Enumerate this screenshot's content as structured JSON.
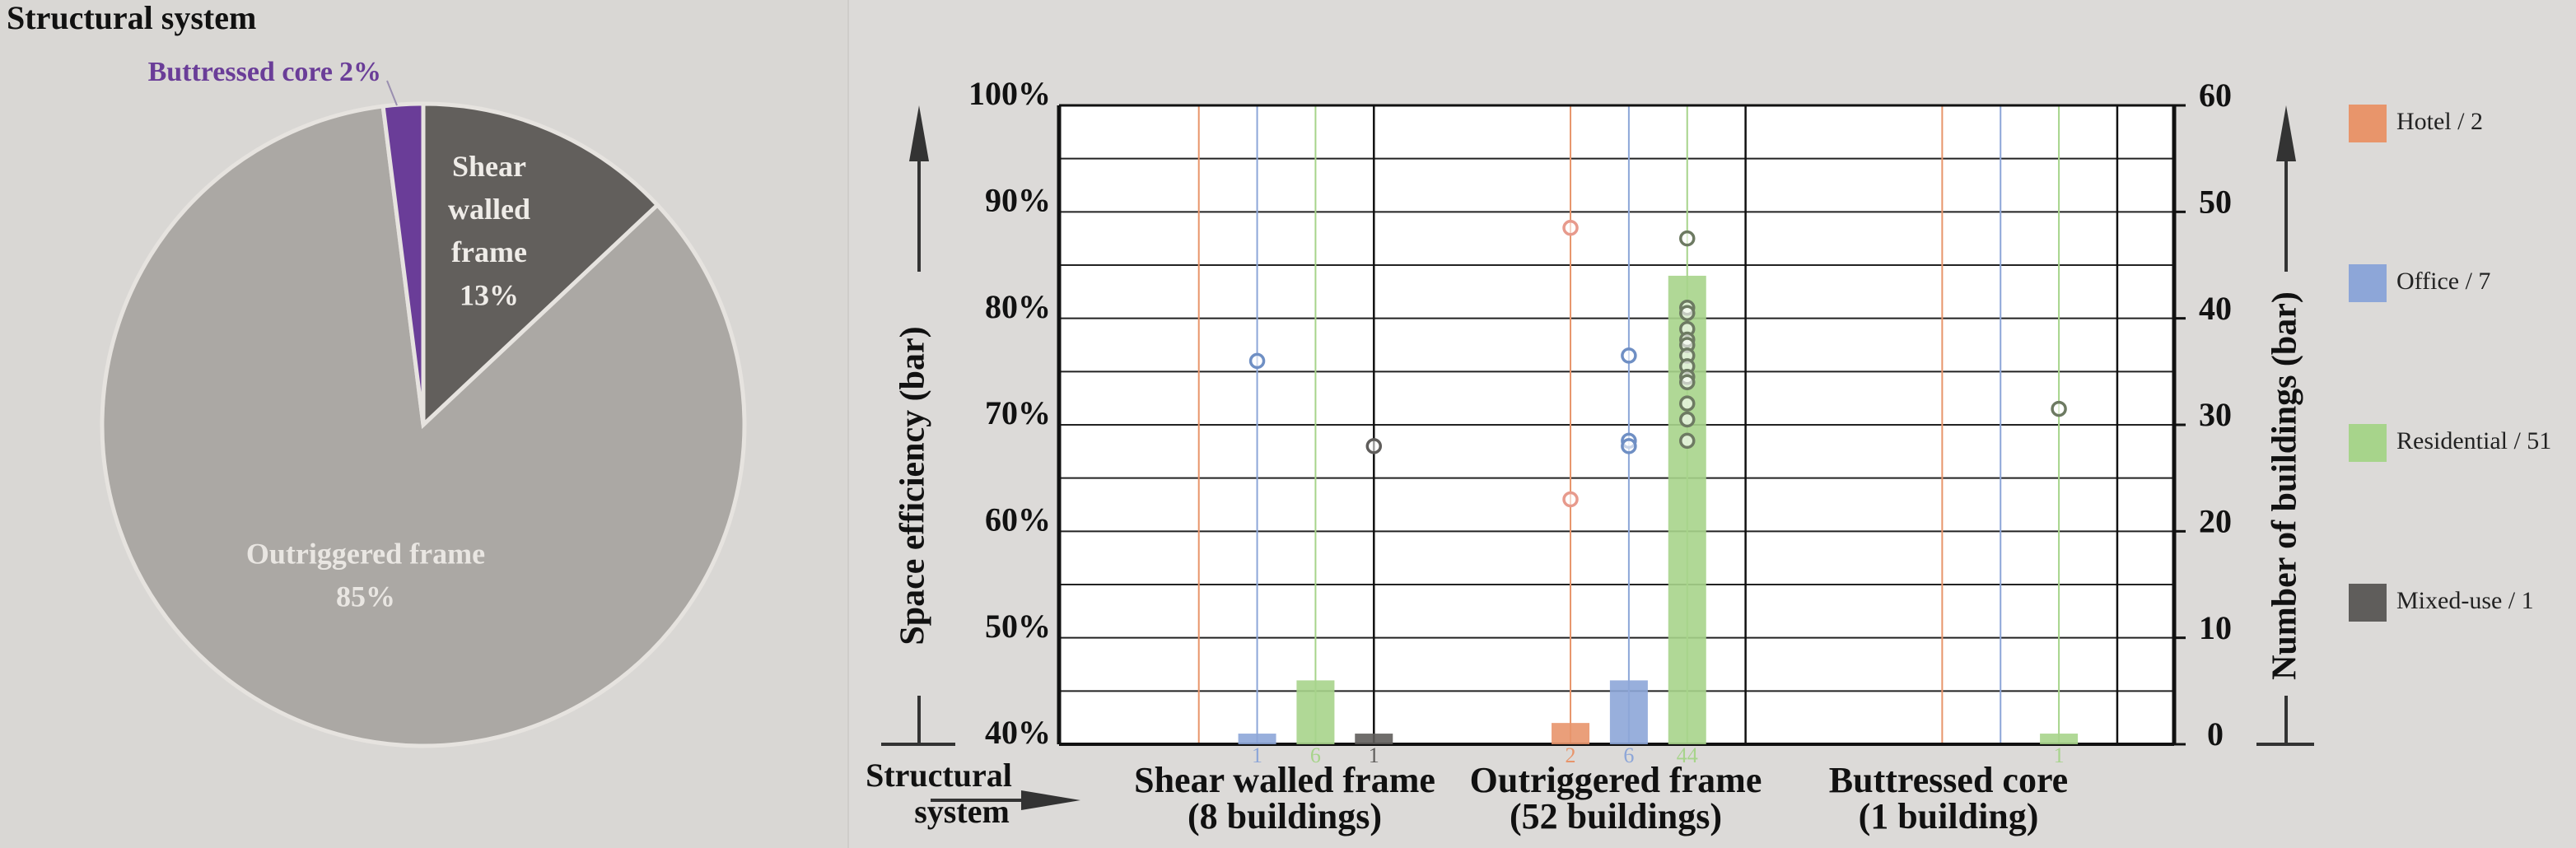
{
  "chart_data": [
    {
      "type": "pie",
      "title": "Structural system",
      "categories": [
        "Shear walled frame",
        "Outriggered frame",
        "Buttressed core"
      ],
      "values": [
        13,
        85,
        2
      ],
      "value_labels": [
        "13%",
        "85%",
        "2%"
      ],
      "colors": [
        "#625f5c",
        "#aba8a4",
        "#6a3d98"
      ]
    },
    {
      "type": "bar",
      "categories": [
        "Shear walled frame",
        "Outriggered frame",
        "Buttressed core"
      ],
      "category_subtitles": [
        "(8 buildings)",
        "(52 buildings)",
        "(1 building)"
      ],
      "x_label": "Structural system",
      "y_label": "Space efficiency (bar)",
      "y2_label": "Number of buildings (bar)",
      "ylim": [
        40,
        100
      ],
      "yticks": [
        {
          "value": 40,
          "label": "40%"
        },
        {
          "value": 50,
          "label": "50%"
        },
        {
          "value": 60,
          "label": "60%"
        },
        {
          "value": 70,
          "label": "70%"
        },
        {
          "value": 80,
          "label": "80%"
        },
        {
          "value": 90,
          "label": "90%"
        },
        {
          "value": 100,
          "label": "100%"
        }
      ],
      "minor_yticks": [
        45,
        55,
        65,
        75,
        85,
        95
      ],
      "y2lim": [
        0,
        60
      ],
      "y2ticks": [
        0,
        10,
        20,
        30,
        40,
        50,
        60
      ],
      "grid": true,
      "series": [
        {
          "name": "Hotel / 2",
          "color": "#e8956b",
          "marker_color": "#e79a8c",
          "axis": "y2",
          "values": [
            null,
            2,
            null
          ],
          "efficiency": [
            [],
            [
              88.5,
              63
            ],
            []
          ]
        },
        {
          "name": "Office / 7",
          "color": "#8da6d8",
          "marker_color": "#6f8fc4",
          "axis": "y2",
          "values": [
            1,
            6,
            null
          ],
          "efficiency": [
            [
              76
            ],
            [
              76.5,
              68.5,
              68
            ],
            []
          ]
        },
        {
          "name": "Residential / 51",
          "color": "#a7d48b",
          "marker_color": "#6d7a62",
          "axis": "y2",
          "values": [
            6,
            44,
            1
          ],
          "efficiency": [
            [],
            [
              87.5,
              81,
              80.5,
              79,
              78,
              77.5,
              76.5,
              75.5,
              74.5,
              74,
              72,
              70.5,
              68.5
            ],
            [
              71.5
            ]
          ]
        },
        {
          "name": "Mixed-use / 1",
          "color": "#5f5d5b",
          "marker_color": "#5f5d5b",
          "axis": "y2",
          "values": [
            1,
            null,
            null
          ],
          "efficiency": [
            [
              68
            ],
            [],
            []
          ]
        }
      ]
    }
  ]
}
